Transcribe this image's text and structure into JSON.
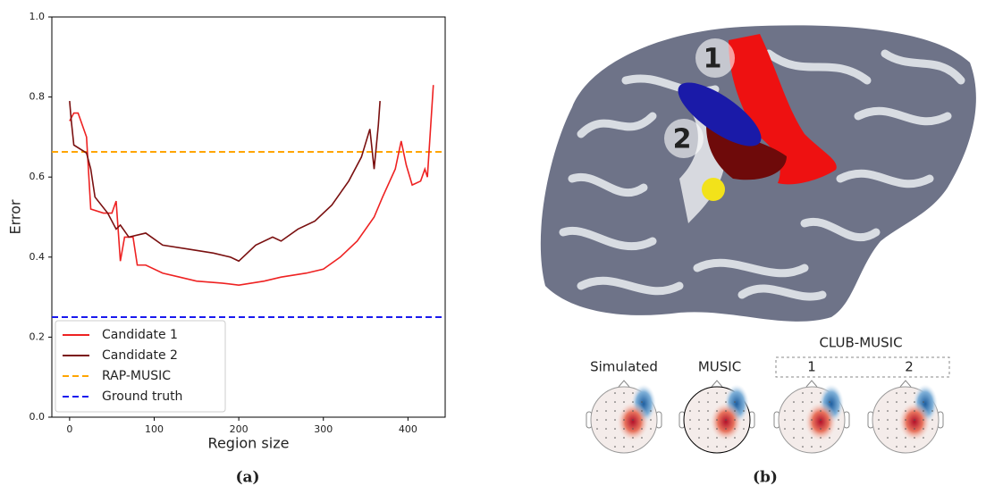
{
  "chart_data": {
    "type": "line",
    "xlabel": "Region size",
    "ylabel": "Error",
    "xlim": [
      -21,
      444
    ],
    "ylim": [
      0,
      1
    ],
    "xticks": [
      0,
      100,
      200,
      300,
      400
    ],
    "yticks": [
      {
        "value": 0,
        "label": "0.0"
      },
      {
        "value": 0.2,
        "label": "0.2"
      },
      {
        "value": 0.4,
        "label": "0.4"
      },
      {
        "value": 0.6,
        "label": "0.6"
      },
      {
        "value": 0.8,
        "label": "0.8"
      },
      {
        "value": 1,
        "label": "1.0"
      }
    ],
    "series": [
      {
        "name": "Candidate 1",
        "color": "#ee2222",
        "x": [
          0,
          5,
          10,
          20,
          25,
          40,
          50,
          55,
          60,
          65,
          75,
          80,
          90,
          110,
          130,
          150,
          180,
          200,
          230,
          250,
          280,
          300,
          320,
          340,
          360,
          370,
          385,
          392,
          398,
          405,
          415,
          420,
          423,
          430
        ],
        "values": [
          0.74,
          0.76,
          0.76,
          0.7,
          0.52,
          0.51,
          0.51,
          0.54,
          0.39,
          0.45,
          0.45,
          0.38,
          0.38,
          0.36,
          0.35,
          0.34,
          0.335,
          0.33,
          0.34,
          0.35,
          0.36,
          0.37,
          0.4,
          0.44,
          0.5,
          0.55,
          0.62,
          0.69,
          0.63,
          0.58,
          0.59,
          0.62,
          0.6,
          0.83
        ]
      },
      {
        "name": "Candidate 2",
        "color": "#7a1010",
        "x": [
          0,
          2,
          5,
          20,
          25,
          30,
          45,
          55,
          60,
          70,
          90,
          110,
          140,
          170,
          190,
          200,
          220,
          240,
          250,
          270,
          290,
          310,
          330,
          345,
          355,
          360,
          365,
          367
        ],
        "values": [
          0.79,
          0.74,
          0.68,
          0.66,
          0.62,
          0.55,
          0.51,
          0.47,
          0.48,
          0.45,
          0.46,
          0.43,
          0.42,
          0.41,
          0.4,
          0.39,
          0.43,
          0.45,
          0.44,
          0.47,
          0.49,
          0.53,
          0.59,
          0.65,
          0.72,
          0.62,
          0.73,
          0.79
        ]
      }
    ],
    "hlines": [
      {
        "name": "RAP-MUSIC",
        "color": "#ffa500",
        "value": 0.663
      },
      {
        "name": "Ground truth",
        "color": "#1a1aee",
        "value": 0.25
      }
    ],
    "legend": "lower left"
  },
  "captions": [
    "(a)",
    "(b)"
  ],
  "panel_b": {
    "region_labels": [
      "1",
      "2"
    ],
    "map_titles": [
      "Simulated",
      "MUSIC"
    ],
    "group_title": "CLUB-MUSIC",
    "group_items": [
      "1",
      "2"
    ]
  }
}
